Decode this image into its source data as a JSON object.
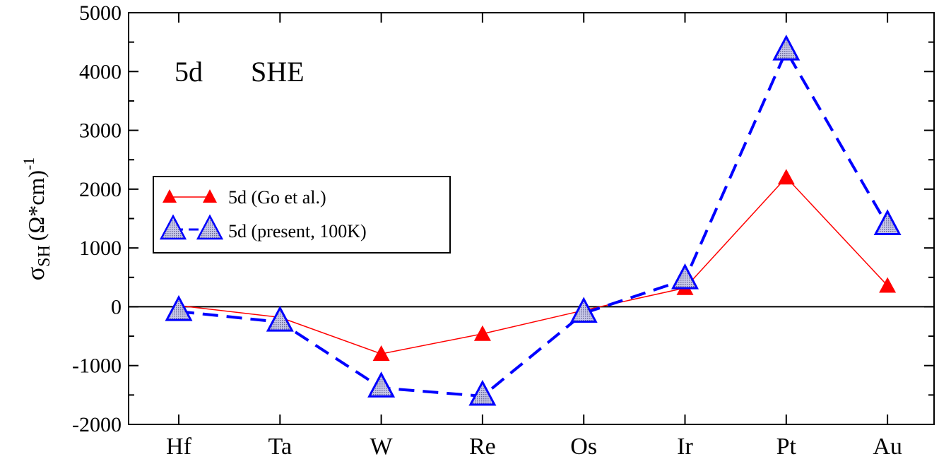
{
  "chart_data": {
    "type": "line",
    "categories": [
      "Hf",
      "Ta",
      "W",
      "Re",
      "Os",
      "Ir",
      "Pt",
      "Au"
    ],
    "series": [
      {
        "name": "5d (Go et al.)",
        "values": [
          20,
          -180,
          -800,
          -460,
          -60,
          320,
          2200,
          360
        ],
        "color": "#ff0000",
        "style": "solid",
        "marker": "filled-triangle"
      },
      {
        "name": "5d (present, 100K)",
        "values": [
          -80,
          -260,
          -1380,
          -1520,
          -110,
          460,
          4350,
          1380
        ],
        "color": "#0000ff",
        "style": "dashed",
        "marker": "hatched-triangle"
      }
    ],
    "title": "",
    "annotation": {
      "label1": "5d",
      "label2": "SHE"
    },
    "ylabel": {
      "main": "σ",
      "sub": "SH",
      "unit": "(Ω*cm)",
      "sup": "-1"
    },
    "xlabel": "",
    "ylim": [
      -2000,
      5000
    ],
    "yticks": [
      -2000,
      -1000,
      0,
      1000,
      2000,
      3000,
      4000,
      5000
    ],
    "legend_position": "center-left",
    "zero_line": true
  }
}
